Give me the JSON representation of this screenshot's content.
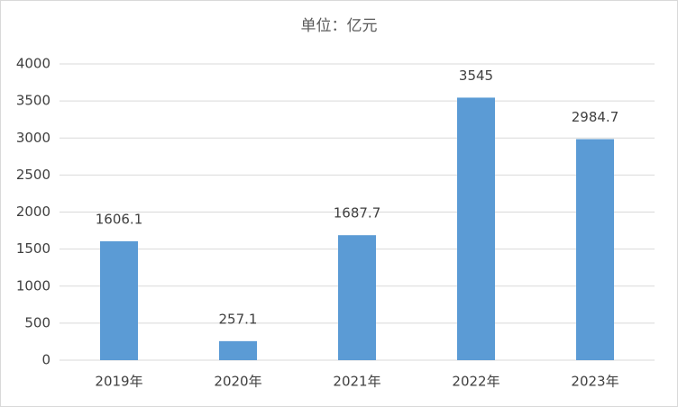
{
  "chart_data": {
    "type": "bar",
    "title": "单位：亿元",
    "categories": [
      "2019年",
      "2020年",
      "2021年",
      "2022年",
      "2023年"
    ],
    "values": [
      1606.1,
      257.1,
      1687.7,
      3545,
      2984.7
    ],
    "color": "#5b9bd5",
    "ylim": [
      0,
      4000
    ],
    "yticks": [
      0,
      500,
      1000,
      1500,
      2000,
      2500,
      3000,
      3500,
      4000
    ],
    "grid": true
  }
}
